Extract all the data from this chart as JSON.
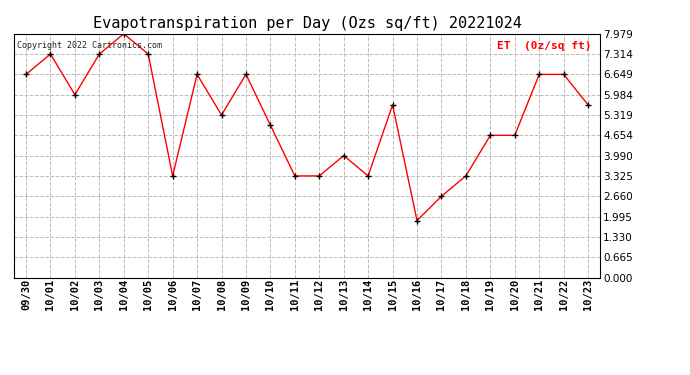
{
  "title": "Evapotranspiration per Day (Ozs sq/ft) 20221024",
  "copyright": "Copyright 2022 Cartronics.com",
  "legend_label": "ET  (0z/sq ft)",
  "x_labels": [
    "09/30",
    "10/01",
    "10/02",
    "10/03",
    "10/04",
    "10/05",
    "10/06",
    "10/07",
    "10/08",
    "10/09",
    "10/10",
    "10/11",
    "10/12",
    "10/13",
    "10/14",
    "10/15",
    "10/16",
    "10/17",
    "10/18",
    "10/19",
    "10/20",
    "10/21",
    "10/22",
    "10/23"
  ],
  "y_values": [
    6.649,
    7.314,
    5.984,
    7.314,
    7.979,
    7.314,
    3.325,
    6.649,
    5.319,
    6.649,
    4.987,
    3.325,
    3.325,
    3.99,
    3.325,
    5.65,
    1.862,
    2.66,
    3.325,
    4.654,
    4.654,
    6.649,
    6.649,
    5.65
  ],
  "ylim": [
    0.0,
    7.979
  ],
  "yticks": [
    0.0,
    0.665,
    1.33,
    1.995,
    2.66,
    3.325,
    3.99,
    4.654,
    5.319,
    5.984,
    6.649,
    7.314,
    7.979
  ],
  "line_color": "red",
  "marker_color": "black",
  "marker": "+",
  "background_color": "white",
  "grid_color": "#bbbbbb",
  "title_fontsize": 11,
  "tick_fontsize": 7.5,
  "copyright_fontsize": 6,
  "legend_fontsize": 8
}
